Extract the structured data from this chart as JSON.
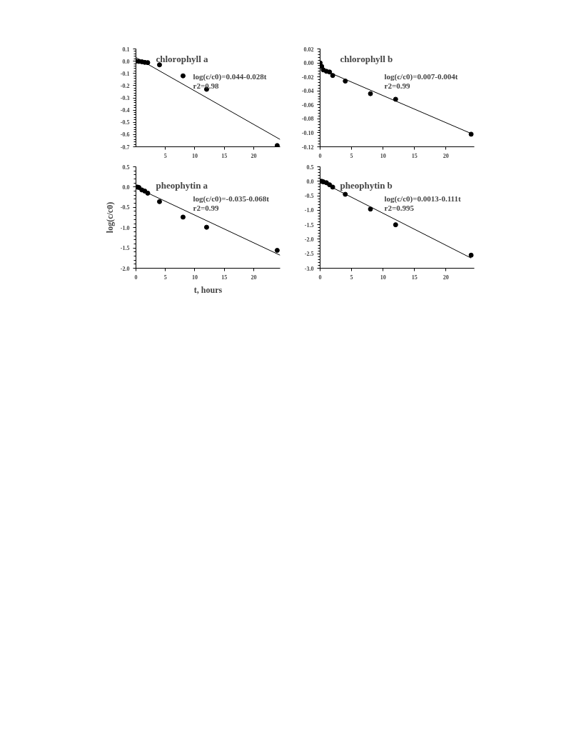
{
  "chart_data": [
    {
      "type": "scatter",
      "title": "chlorophyll a",
      "annotations": [
        "log(c/c0)=0.044-0.028t",
        "r2=0.98"
      ],
      "xlim": [
        0,
        24.5
      ],
      "xticks": [
        5,
        10,
        15,
        20
      ],
      "ylim": [
        -0.7,
        0.1
      ],
      "yticks": [
        0.1,
        {
          "value": 0,
          "label": "0.0"
        },
        -0.1,
        -0.2,
        -0.3,
        -0.4,
        -0.5,
        -0.6,
        -0.7
      ],
      "series": [
        {
          "color": "#000000",
          "marker": "circle",
          "x": [
            0,
            0.5,
            1,
            1.5,
            2,
            4,
            8,
            12,
            24
          ],
          "values": [
            0,
            -0.002,
            -0.005,
            -0.01,
            -0.012,
            -0.03,
            -0.12,
            -0.23,
            -0.69
          ]
        },
        {
          "type": "line",
          "color": "#000000",
          "line_style": "solid",
          "x": [
            0,
            24.5
          ],
          "values": [
            0.03,
            -0.64
          ]
        }
      ]
    },
    {
      "type": "scatter",
      "title": "chlorophyll b",
      "annotations": [
        "log(c/c0)=0.007-0.004t",
        "r2=0.99"
      ],
      "xlim": [
        0,
        24.5
      ],
      "xticks": [
        0,
        5,
        10,
        15,
        20
      ],
      "ylim": [
        -0.12,
        0.02
      ],
      "yticks": [
        0.02,
        {
          "value": 0,
          "label": "0.00"
        },
        -0.02,
        -0.04,
        -0.06,
        -0.08,
        {
          "value": -0.1,
          "label": "-0.10"
        },
        -0.12
      ],
      "series": [
        {
          "color": "#000000",
          "marker": "circle",
          "x": [
            0,
            0.25,
            0.5,
            1,
            1.5,
            2,
            4,
            8,
            12,
            24
          ],
          "values": [
            0,
            -0.005,
            -0.01,
            -0.012,
            -0.013,
            -0.018,
            -0.026,
            -0.044,
            -0.052,
            -0.102
          ]
        },
        {
          "type": "line",
          "color": "#000000",
          "line_style": "solid",
          "x": [
            0.5,
            24
          ],
          "values": [
            -0.01,
            -0.101
          ]
        }
      ]
    },
    {
      "type": "scatter",
      "title": "pheophytin a",
      "xlabel": "t, hours",
      "ylabel": "log(c/c0)",
      "annotations": [
        "log(c/c0)=-0.035-0.068t",
        "r2=0.99"
      ],
      "xlim": [
        0,
        24.5
      ],
      "xticks": [
        0,
        5,
        10,
        15,
        20
      ],
      "ylim": [
        -2.0,
        0.5
      ],
      "yticks": [
        0.5,
        {
          "value": 0,
          "label": "0.0"
        },
        -0.5,
        {
          "value": -1,
          "label": "-1.0"
        },
        -1.5,
        {
          "value": -2,
          "label": "-2.0"
        }
      ],
      "series": [
        {
          "color": "#000000",
          "marker": "circle",
          "x": [
            0,
            0.25,
            0.5,
            1,
            1.5,
            2,
            4,
            8,
            12,
            24
          ],
          "values": [
            0,
            0,
            -0.01,
            -0.07,
            -0.1,
            -0.15,
            -0.36,
            -0.74,
            -0.99,
            -1.56
          ]
        },
        {
          "type": "line",
          "color": "#000000",
          "line_style": "solid",
          "x": [
            0,
            24.5
          ],
          "values": [
            -0.01,
            -1.68
          ]
        }
      ]
    },
    {
      "type": "scatter",
      "title": "pheophytin b",
      "annotations": [
        "log(c/c0)=0.0013-0.111t",
        "r2=0.995"
      ],
      "xlim": [
        0,
        24.5
      ],
      "xticks": [
        0,
        5,
        10,
        15,
        20
      ],
      "ylim": [
        -3.0,
        0.5
      ],
      "yticks": [
        0.5,
        {
          "value": 0,
          "label": "0.0"
        },
        -0.5,
        {
          "value": -1,
          "label": "-1.0"
        },
        -1.5,
        {
          "value": -2,
          "label": "-2.0"
        },
        -2.5,
        {
          "value": -3,
          "label": "-3.0"
        }
      ],
      "series": [
        {
          "color": "#000000",
          "marker": "circle",
          "x": [
            0,
            0.25,
            0.5,
            1,
            1.5,
            2,
            4,
            8,
            12,
            24
          ],
          "values": [
            0,
            0,
            -0.02,
            -0.05,
            -0.12,
            -0.2,
            -0.45,
            -0.96,
            -1.5,
            -2.55
          ]
        },
        {
          "type": "line",
          "color": "#000000",
          "line_style": "solid",
          "x": [
            0,
            24
          ],
          "values": [
            0,
            -2.65
          ]
        }
      ]
    }
  ]
}
